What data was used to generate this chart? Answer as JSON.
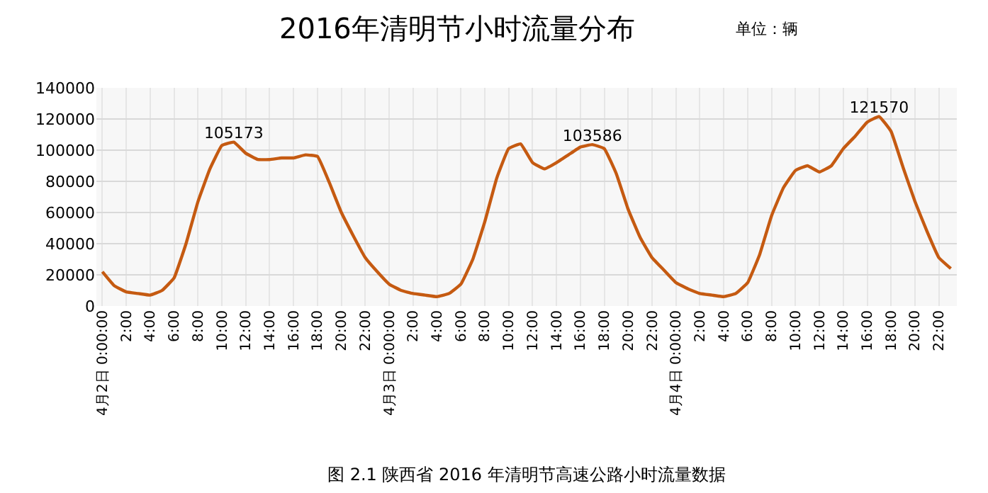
{
  "chart_data": {
    "type": "line",
    "title": "2016年清明节小时流量分布",
    "subtitle": "单位：辆",
    "annotations": [
      "图 2.1 陕西省 2016 年清明节高速公路小时流量数据"
    ],
    "categories": [
      "4月2日 0:00:00",
      null,
      "2:00",
      null,
      "4:00",
      null,
      "6:00",
      null,
      "8:00",
      null,
      "10:00",
      null,
      "12:00",
      null,
      "14:00",
      null,
      "16:00",
      null,
      "18:00",
      null,
      "20:00",
      null,
      "22:00",
      null,
      "4月3日 0:00:00",
      null,
      "2:00",
      null,
      "4:00",
      null,
      "6:00",
      null,
      "8:00",
      null,
      "10:00",
      null,
      "12:00",
      null,
      "14:00",
      null,
      "16:00",
      null,
      "18:00",
      null,
      "20:00",
      null,
      "22:00",
      null,
      "4月4日 0:00:00",
      null,
      "2:00",
      null,
      "4:00",
      null,
      "6:00",
      null,
      "8:00",
      null,
      "10:00",
      null,
      "12:00",
      null,
      "14:00",
      null,
      "16:00",
      null,
      "18:00",
      null,
      "20:00",
      null,
      "22:00",
      null
    ],
    "series": [
      {
        "color": "#c55a11",
        "values": [
          22000,
          13000,
          9000,
          8000,
          7000,
          10000,
          18000,
          40000,
          67000,
          88000,
          103000,
          105173,
          98000,
          94000,
          94000,
          95000,
          95000,
          97000,
          96000,
          79000,
          60000,
          45000,
          31000,
          22000,
          14000,
          10000,
          8000,
          7000,
          6000,
          8000,
          14000,
          30000,
          54000,
          82000,
          101000,
          104000,
          92000,
          88000,
          92000,
          97000,
          102000,
          103586,
          101000,
          85000,
          62000,
          44000,
          31000,
          23000,
          15000,
          11000,
          8000,
          7000,
          6000,
          8000,
          15000,
          33000,
          58000,
          76000,
          87000,
          90000,
          86000,
          90000,
          101000,
          109000,
          118000,
          121570,
          112000,
          89000,
          67000,
          48000,
          31000,
          24000
        ],
        "value_labels": [
          null,
          null,
          null,
          null,
          null,
          null,
          null,
          null,
          null,
          null,
          null,
          "105173",
          null,
          null,
          null,
          null,
          null,
          null,
          null,
          null,
          null,
          null,
          null,
          null,
          null,
          null,
          null,
          null,
          null,
          null,
          null,
          null,
          null,
          null,
          null,
          null,
          null,
          null,
          null,
          null,
          null,
          "103586",
          null,
          null,
          null,
          null,
          null,
          null,
          null,
          null,
          null,
          null,
          null,
          null,
          null,
          null,
          null,
          null,
          null,
          null,
          null,
          null,
          null,
          null,
          null,
          "121570",
          null,
          null,
          null,
          null,
          null,
          null
        ]
      }
    ],
    "ylim": [
      0,
      140000
    ],
    "yticks": [
      0,
      20000,
      40000,
      60000,
      80000,
      100000,
      120000,
      140000
    ],
    "grid": true,
    "marker": "none",
    "line_style": "solid"
  }
}
